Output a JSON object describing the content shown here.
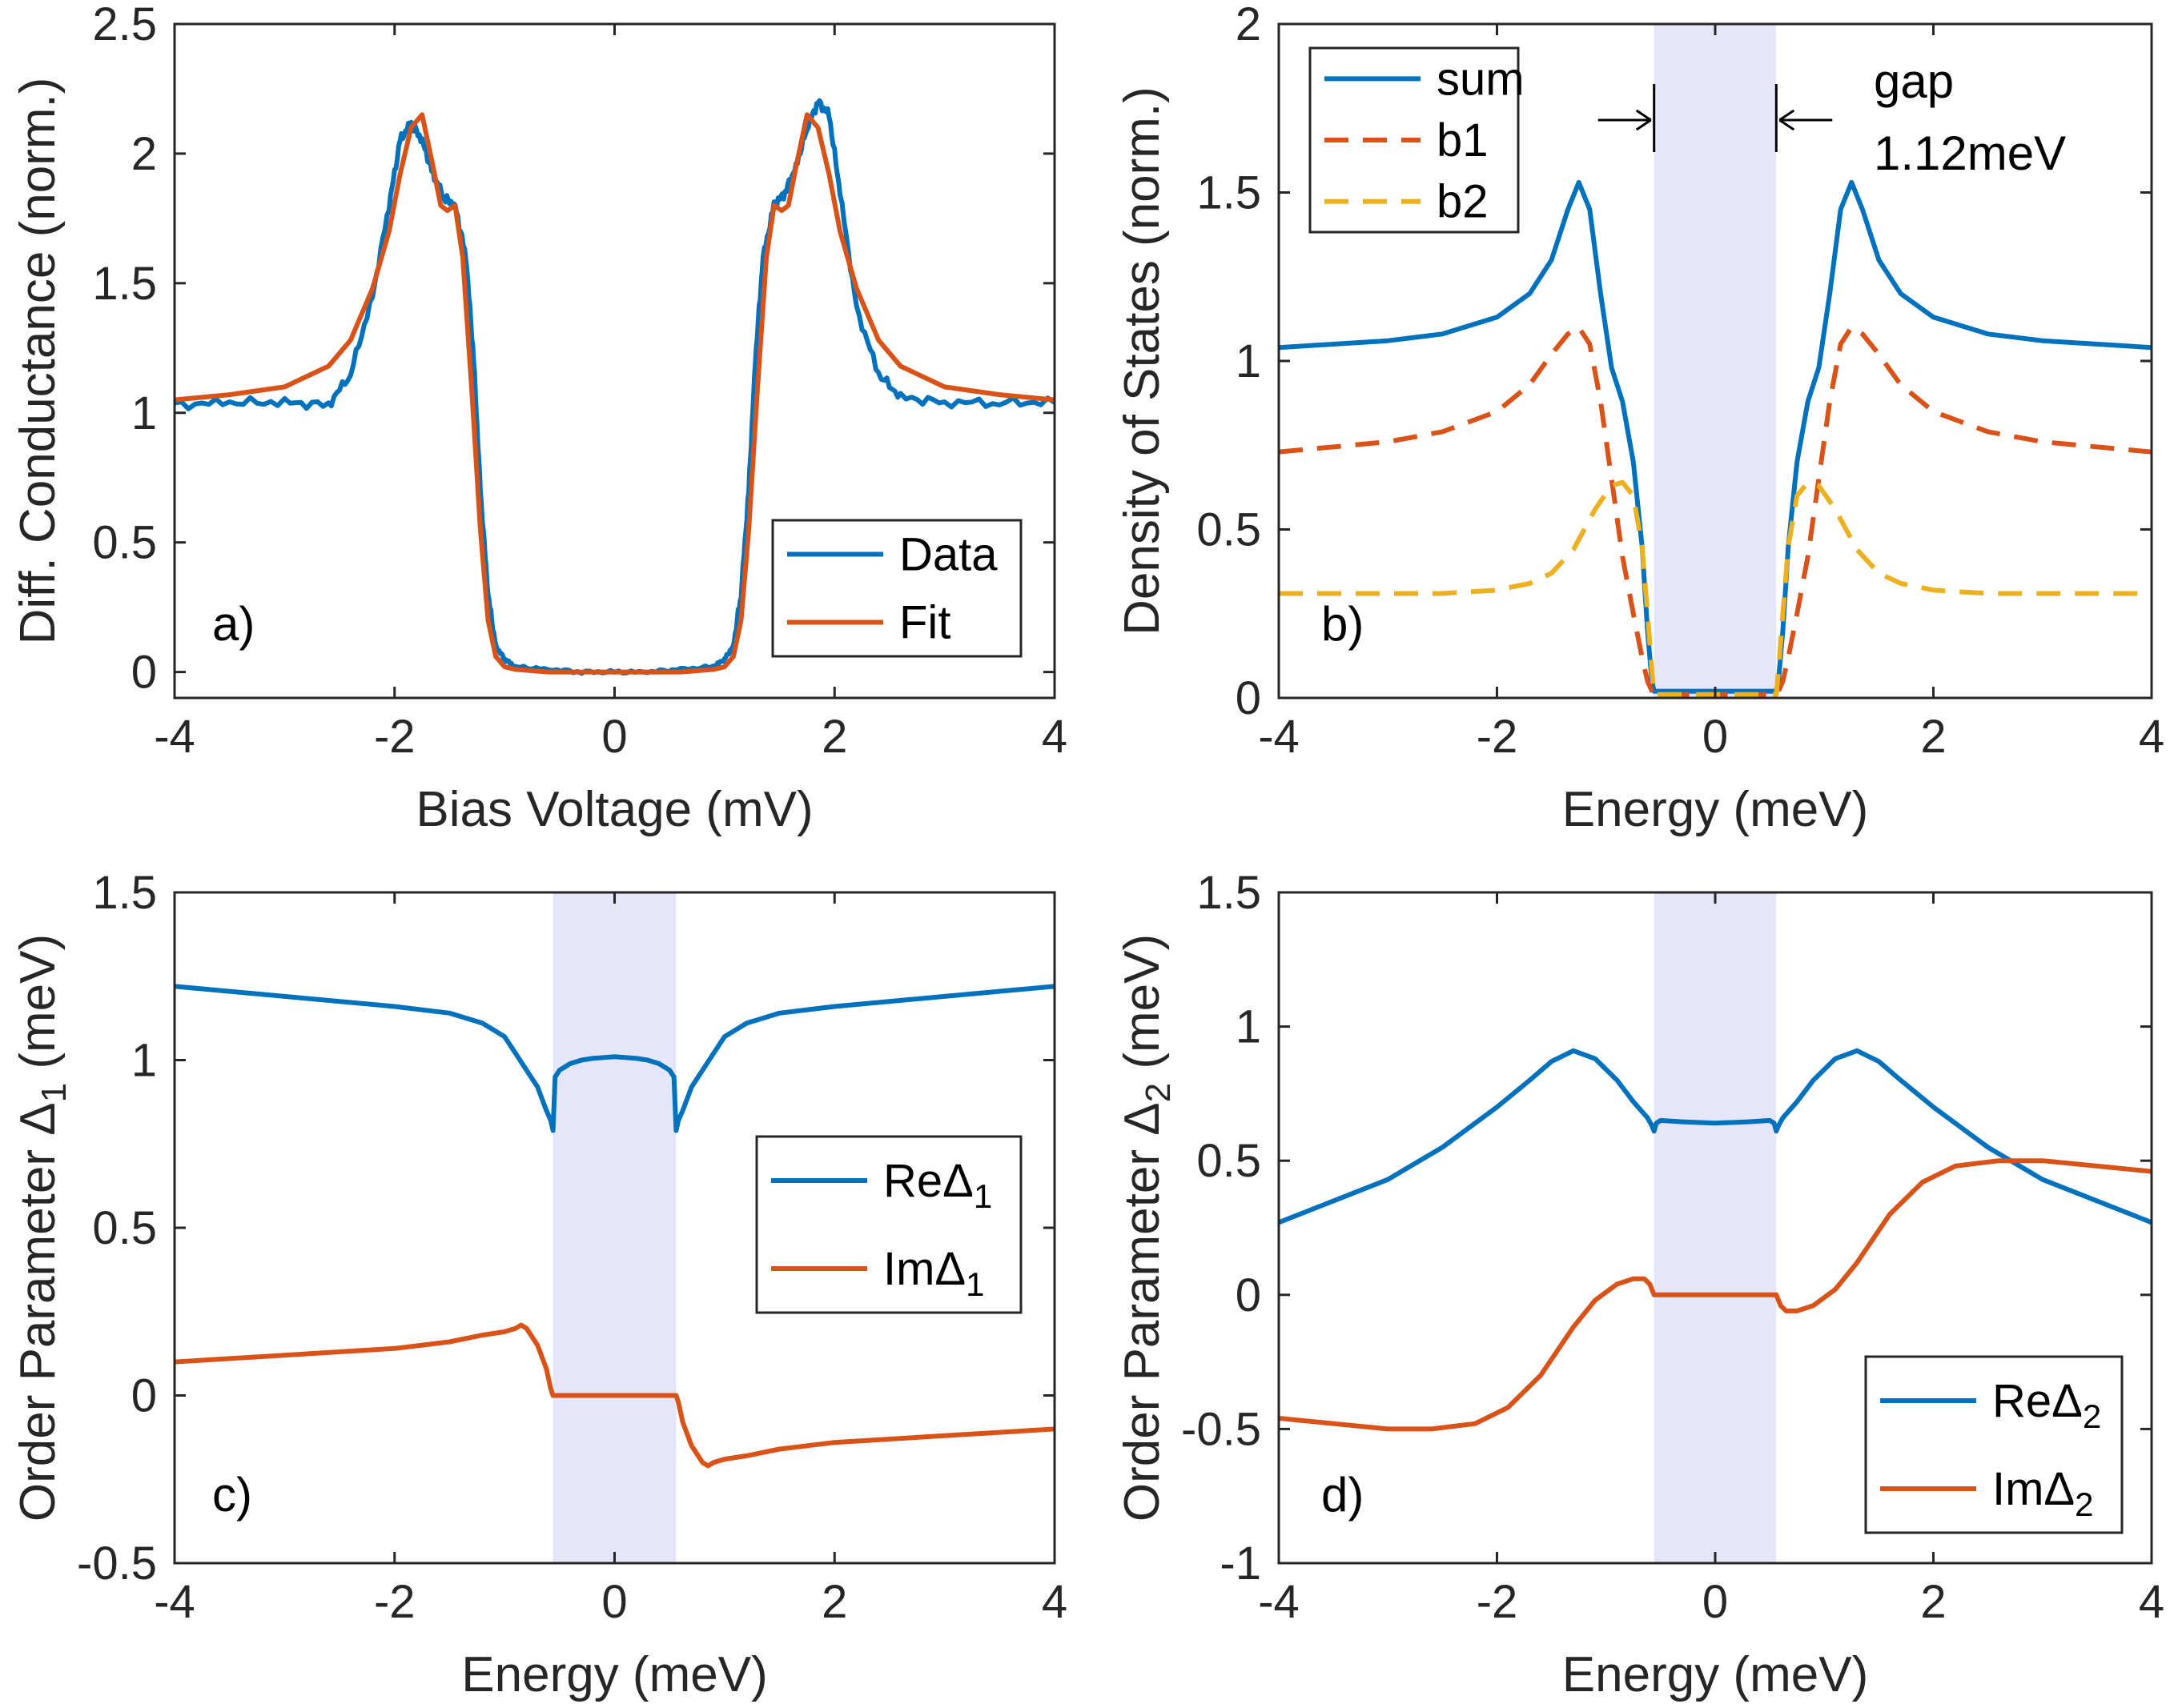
{
  "colors": {
    "blue": "#0072BD",
    "orange": "#D95319",
    "yellow": "#EDB120",
    "shade": "#E6E6FA",
    "axis": "#262626"
  },
  "chart_data": [
    {
      "id": "a",
      "type": "line",
      "panel_label": "a)",
      "xlabel": "Bias Voltage (mV)",
      "ylabel": "Diff. Conductance (norm.)",
      "xlim": [
        -4,
        4
      ],
      "ylim": [
        -0.1,
        2.5
      ],
      "xticks": [
        -4,
        -2,
        0,
        2,
        4
      ],
      "xtick_labels": [
        "-4",
        "-2",
        "0",
        "2",
        "4"
      ],
      "yticks": [
        0,
        0.5,
        1,
        1.5,
        2,
        2.5
      ],
      "ytick_labels": [
        "0",
        "0.5",
        "1",
        "1.5",
        "2",
        "2.5"
      ],
      "legend": {
        "position": "bottom-right",
        "entries": [
          {
            "label": "Data",
            "color": "#0072BD",
            "dash": "solid"
          },
          {
            "label": "Fit",
            "color": "#D95319",
            "dash": "solid"
          }
        ]
      },
      "series": [
        {
          "name": "Data",
          "color": "#0072BD",
          "dash": "solid",
          "noisy": true,
          "x": [
            -4,
            -3.5,
            -3,
            -2.6,
            -2.4,
            -2.2,
            -2.05,
            -1.95,
            -1.85,
            -1.75,
            -1.65,
            -1.55,
            -1.45,
            -1.35,
            -1.28,
            -1.22,
            -1.15,
            -1.08,
            -1.0,
            -0.9,
            -0.6,
            -0.3,
            0,
            0.3,
            0.6,
            0.9,
            1.0,
            1.08,
            1.15,
            1.22,
            1.28,
            1.35,
            1.45,
            1.55,
            1.65,
            1.75,
            1.85,
            1.95,
            2.05,
            2.2,
            2.4,
            2.6,
            3.0,
            3.5,
            4
          ],
          "y": [
            1.03,
            1.04,
            1.04,
            1.03,
            1.15,
            1.45,
            1.8,
            2.05,
            2.12,
            2.05,
            1.92,
            1.83,
            1.8,
            1.6,
            1.2,
            0.7,
            0.3,
            0.1,
            0.05,
            0.02,
            0.01,
            0.0,
            0.0,
            0.0,
            0.01,
            0.02,
            0.05,
            0.1,
            0.3,
            0.7,
            1.2,
            1.6,
            1.8,
            1.85,
            1.95,
            2.1,
            2.2,
            2.15,
            1.85,
            1.4,
            1.15,
            1.06,
            1.04,
            1.04,
            1.04
          ]
        },
        {
          "name": "Fit",
          "color": "#D95319",
          "dash": "solid",
          "x": [
            -4,
            -3.5,
            -3,
            -2.6,
            -2.4,
            -2.2,
            -2.05,
            -1.95,
            -1.85,
            -1.75,
            -1.65,
            -1.58,
            -1.52,
            -1.45,
            -1.38,
            -1.3,
            -1.22,
            -1.15,
            -1.08,
            -1.0,
            -0.9,
            -0.6,
            -0.3,
            0,
            0.3,
            0.6,
            0.9,
            1.0,
            1.08,
            1.15,
            1.22,
            1.3,
            1.38,
            1.45,
            1.52,
            1.58,
            1.65,
            1.75,
            1.85,
            1.95,
            2.05,
            2.2,
            2.4,
            2.6,
            3.0,
            3.5,
            4
          ],
          "y": [
            1.05,
            1.07,
            1.1,
            1.18,
            1.28,
            1.48,
            1.7,
            1.92,
            2.1,
            2.15,
            1.95,
            1.8,
            1.78,
            1.8,
            1.6,
            1.1,
            0.55,
            0.2,
            0.06,
            0.02,
            0.01,
            0.0,
            0.0,
            0.0,
            0.0,
            0.0,
            0.01,
            0.02,
            0.06,
            0.2,
            0.55,
            1.1,
            1.6,
            1.8,
            1.78,
            1.8,
            1.95,
            2.15,
            2.1,
            1.92,
            1.7,
            1.48,
            1.28,
            1.18,
            1.1,
            1.07,
            1.05
          ]
        }
      ]
    },
    {
      "id": "b",
      "type": "line",
      "panel_label": "b)",
      "xlabel": "Energy (meV)",
      "ylabel": "Density of States (norm.)",
      "xlim": [
        -4,
        4
      ],
      "ylim": [
        0,
        2
      ],
      "xticks": [
        -4,
        -2,
        0,
        2,
        4
      ],
      "xtick_labels": [
        "-4",
        "-2",
        "0",
        "2",
        "4"
      ],
      "yticks": [
        0,
        0.5,
        1,
        1.5,
        2
      ],
      "ytick_labels": [
        "0",
        "0.5",
        "1",
        "1.5",
        "2"
      ],
      "shaded_band": [
        -0.56,
        0.56
      ],
      "legend": {
        "position": "top-left",
        "entries": [
          {
            "label": "sum",
            "color": "#0072BD",
            "dash": "solid"
          },
          {
            "label": "b1",
            "color": "#D95319",
            "dash": "dashed"
          },
          {
            "label": "b2",
            "color": "#EDB120",
            "dash": "dashed"
          }
        ]
      },
      "annotation": {
        "line1": "gap",
        "line2": "1.12meV",
        "gap_edges": [
          -0.56,
          0.56
        ]
      },
      "series": [
        {
          "name": "sum",
          "color": "#0072BD",
          "dash": "solid",
          "x": [
            -4,
            -3,
            -2.5,
            -2,
            -1.7,
            -1.5,
            -1.35,
            -1.25,
            -1.15,
            -1.05,
            -0.95,
            -0.85,
            -0.75,
            -0.67,
            -0.62,
            -0.58,
            -0.56,
            0,
            0.56,
            0.58,
            0.62,
            0.67,
            0.75,
            0.85,
            0.95,
            1.05,
            1.15,
            1.25,
            1.35,
            1.5,
            1.7,
            2,
            2.5,
            3,
            4
          ],
          "y": [
            1.04,
            1.06,
            1.08,
            1.13,
            1.2,
            1.3,
            1.45,
            1.53,
            1.45,
            1.2,
            0.98,
            0.88,
            0.7,
            0.45,
            0.2,
            0.05,
            0.02,
            0.02,
            0.02,
            0.05,
            0.2,
            0.45,
            0.7,
            0.88,
            0.98,
            1.2,
            1.45,
            1.53,
            1.45,
            1.3,
            1.2,
            1.13,
            1.08,
            1.06,
            1.04
          ]
        },
        {
          "name": "b1",
          "color": "#D95319",
          "dash": "dashed",
          "x": [
            -4,
            -3,
            -2.5,
            -2,
            -1.7,
            -1.5,
            -1.35,
            -1.25,
            -1.15,
            -1.05,
            -0.95,
            -0.85,
            -0.75,
            -0.67,
            -0.62,
            -0.58,
            -0.56,
            0,
            0.56,
            0.58,
            0.62,
            0.67,
            0.75,
            0.85,
            0.95,
            1.05,
            1.15,
            1.25,
            1.35,
            1.5,
            1.7,
            2,
            2.5,
            3,
            4
          ],
          "y": [
            0.73,
            0.76,
            0.79,
            0.85,
            0.93,
            1.02,
            1.08,
            1.1,
            1.05,
            0.88,
            0.65,
            0.42,
            0.25,
            0.12,
            0.05,
            0.02,
            0.01,
            0.01,
            0.01,
            0.02,
            0.05,
            0.12,
            0.25,
            0.42,
            0.65,
            0.88,
            1.05,
            1.1,
            1.08,
            1.02,
            0.93,
            0.85,
            0.79,
            0.76,
            0.73
          ]
        },
        {
          "name": "b2",
          "color": "#EDB120",
          "dash": "dashed",
          "x": [
            -4,
            -3,
            -2.5,
            -2,
            -1.7,
            -1.5,
            -1.3,
            -1.1,
            -0.95,
            -0.85,
            -0.75,
            -0.67,
            -0.62,
            -0.58,
            -0.56,
            0,
            0.56,
            0.58,
            0.62,
            0.67,
            0.75,
            0.85,
            0.95,
            1.1,
            1.3,
            1.5,
            1.7,
            2,
            2.5,
            3,
            4
          ],
          "y": [
            0.31,
            0.31,
            0.31,
            0.32,
            0.34,
            0.37,
            0.44,
            0.56,
            0.63,
            0.64,
            0.6,
            0.45,
            0.25,
            0.08,
            0.01,
            0.01,
            0.01,
            0.08,
            0.25,
            0.45,
            0.6,
            0.64,
            0.63,
            0.56,
            0.44,
            0.37,
            0.34,
            0.32,
            0.31,
            0.31,
            0.31
          ]
        }
      ]
    },
    {
      "id": "c",
      "type": "line",
      "panel_label": "c)",
      "xlabel": "Energy (meV)",
      "ylabel": "Order Parameter Δ",
      "ylabel_sub": "1",
      "ylabel_unit": " (meV)",
      "xlim": [
        -4,
        4
      ],
      "ylim": [
        -0.5,
        1.5
      ],
      "xticks": [
        -4,
        -2,
        0,
        2,
        4
      ],
      "xtick_labels": [
        "-4",
        "-2",
        "0",
        "2",
        "4"
      ],
      "yticks": [
        -0.5,
        0,
        0.5,
        1,
        1.5
      ],
      "ytick_labels": [
        "-0.5",
        "0",
        "0.5",
        "1",
        "1.5"
      ],
      "shaded_band": [
        -0.56,
        0.56
      ],
      "legend": {
        "position": "middle-right",
        "entries": [
          {
            "label": "ReΔ",
            "sub": "1",
            "color": "#0072BD",
            "dash": "solid"
          },
          {
            "label": "ImΔ",
            "sub": "1",
            "color": "#D95319",
            "dash": "solid"
          }
        ]
      },
      "series": [
        {
          "name": "ReΔ1",
          "color": "#0072BD",
          "dash": "solid",
          "x": [
            -4,
            -3,
            -2,
            -1.5,
            -1.2,
            -1.0,
            -0.9,
            -0.8,
            -0.7,
            -0.62,
            -0.58,
            -0.56,
            -0.54,
            -0.5,
            -0.4,
            -0.3,
            -0.2,
            0,
            0.2,
            0.3,
            0.4,
            0.5,
            0.54,
            0.56,
            0.58,
            0.62,
            0.7,
            0.8,
            0.9,
            1.0,
            1.2,
            1.5,
            2,
            3,
            4
          ],
          "y": [
            1.22,
            1.19,
            1.16,
            1.14,
            1.11,
            1.07,
            1.02,
            0.97,
            0.92,
            0.85,
            0.82,
            0.79,
            0.95,
            0.97,
            0.99,
            1.0,
            1.005,
            1.01,
            1.005,
            1.0,
            0.99,
            0.97,
            0.95,
            0.79,
            0.82,
            0.85,
            0.92,
            0.97,
            1.02,
            1.07,
            1.11,
            1.14,
            1.16,
            1.19,
            1.22
          ]
        },
        {
          "name": "ImΔ1",
          "color": "#D95319",
          "dash": "solid",
          "x": [
            -4,
            -3,
            -2,
            -1.5,
            -1.2,
            -1.0,
            -0.9,
            -0.85,
            -0.8,
            -0.7,
            -0.62,
            -0.58,
            -0.56,
            0,
            0.56,
            0.58,
            0.62,
            0.7,
            0.8,
            0.85,
            0.9,
            1.0,
            1.2,
            1.5,
            2,
            3,
            4
          ],
          "y": [
            0.1,
            0.12,
            0.14,
            0.16,
            0.18,
            0.19,
            0.2,
            0.21,
            0.2,
            0.15,
            0.08,
            0.02,
            0.0,
            0.0,
            0.0,
            -0.02,
            -0.08,
            -0.15,
            -0.2,
            -0.21,
            -0.2,
            -0.19,
            -0.18,
            -0.16,
            -0.14,
            -0.12,
            -0.1
          ]
        }
      ]
    },
    {
      "id": "d",
      "type": "line",
      "panel_label": "d)",
      "xlabel": "Energy (meV)",
      "ylabel": "Order Parameter Δ",
      "ylabel_sub": "2",
      "ylabel_unit": " (meV)",
      "xlim": [
        -4,
        4
      ],
      "ylim": [
        -1,
        1.5
      ],
      "xticks": [
        -4,
        -2,
        0,
        2,
        4
      ],
      "xtick_labels": [
        "-4",
        "-2",
        "0",
        "2",
        "4"
      ],
      "yticks": [
        -1,
        -0.5,
        0,
        0.5,
        1,
        1.5
      ],
      "ytick_labels": [
        "-1",
        "-0.5",
        "0",
        "0.5",
        "1",
        "1.5"
      ],
      "shaded_band": [
        -0.56,
        0.56
      ],
      "legend": {
        "position": "bottom-right",
        "entries": [
          {
            "label": "ReΔ",
            "sub": "2",
            "color": "#0072BD",
            "dash": "solid"
          },
          {
            "label": "ImΔ",
            "sub": "2",
            "color": "#D95319",
            "dash": "solid"
          }
        ]
      },
      "series": [
        {
          "name": "ReΔ2",
          "color": "#0072BD",
          "dash": "solid",
          "x": [
            -4,
            -3,
            -2.5,
            -2,
            -1.7,
            -1.5,
            -1.3,
            -1.1,
            -0.9,
            -0.75,
            -0.62,
            -0.58,
            -0.56,
            -0.54,
            -0.5,
            -0.3,
            0,
            0.3,
            0.5,
            0.54,
            0.56,
            0.58,
            0.62,
            0.75,
            0.9,
            1.1,
            1.3,
            1.5,
            1.7,
            2,
            2.5,
            3,
            4
          ],
          "y": [
            0.27,
            0.43,
            0.55,
            0.7,
            0.8,
            0.87,
            0.91,
            0.88,
            0.8,
            0.72,
            0.66,
            0.63,
            0.61,
            0.64,
            0.65,
            0.645,
            0.64,
            0.645,
            0.65,
            0.64,
            0.61,
            0.63,
            0.66,
            0.72,
            0.8,
            0.88,
            0.91,
            0.87,
            0.8,
            0.7,
            0.55,
            0.43,
            0.27
          ]
        },
        {
          "name": "ImΔ2",
          "color": "#D95319",
          "dash": "solid",
          "x": [
            -4,
            -3.5,
            -3,
            -2.6,
            -2.2,
            -1.9,
            -1.6,
            -1.3,
            -1.1,
            -0.9,
            -0.75,
            -0.65,
            -0.6,
            -0.56,
            0,
            0.56,
            0.6,
            0.65,
            0.75,
            0.9,
            1.1,
            1.3,
            1.6,
            1.9,
            2.2,
            2.6,
            3,
            3.5,
            4
          ],
          "y": [
            -0.46,
            -0.48,
            -0.5,
            -0.5,
            -0.48,
            -0.42,
            -0.3,
            -0.12,
            -0.02,
            0.04,
            0.06,
            0.06,
            0.04,
            0.0,
            0.0,
            0.0,
            -0.04,
            -0.06,
            -0.06,
            -0.04,
            0.02,
            0.12,
            0.3,
            0.42,
            0.48,
            0.5,
            0.5,
            0.48,
            0.46
          ]
        }
      ]
    }
  ]
}
